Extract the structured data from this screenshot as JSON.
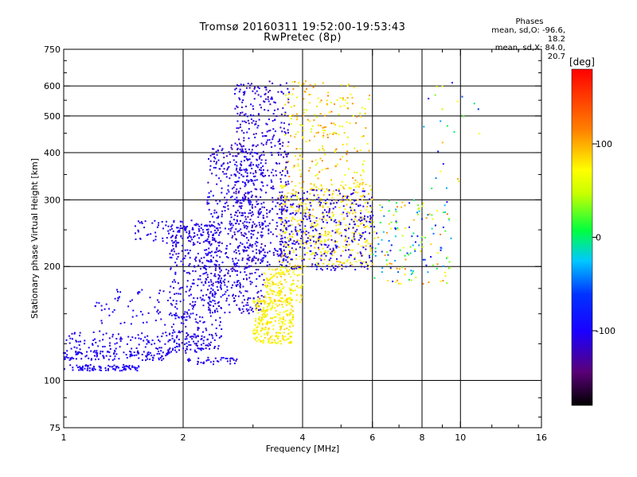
{
  "header": {
    "title_line1": "Tromsø 20160311 19:52:00-19:53:43",
    "title_line2": "RwPretec (8p)"
  },
  "phase_stats": {
    "title": "Phases",
    "line_o": "mean, sd,O:  -96.6, 18.2",
    "line_x": "mean, sd,X:  84.0, 20.7"
  },
  "colorbar": {
    "unit": "[deg]",
    "ticks": [
      {
        "value": 100,
        "label": "100"
      },
      {
        "value": 0,
        "label": "0"
      },
      {
        "value": -100,
        "label": "-100"
      }
    ],
    "range": [
      -180,
      180
    ]
  },
  "chart_data": {
    "type": "scatter",
    "xlabel": "Frequency [MHz]",
    "ylabel": "Stationary phase Virtual Height [km]",
    "x_scale": "log",
    "y_scale": "log",
    "xlim": [
      1,
      16
    ],
    "ylim": [
      75,
      750
    ],
    "x_ticks": [
      {
        "value": 1,
        "label": "1"
      },
      {
        "value": 2,
        "label": "2"
      },
      {
        "value": 4,
        "label": "4"
      },
      {
        "value": 6,
        "label": "6"
      },
      {
        "value": 8,
        "label": "8"
      },
      {
        "value": 10,
        "label": "10"
      },
      {
        "value": 16,
        "label": "16"
      }
    ],
    "x_minor_ticks": [
      3,
      5,
      7,
      9,
      12,
      14
    ],
    "x_grid": [
      2,
      4,
      6,
      8,
      10
    ],
    "y_ticks": [
      {
        "value": 75,
        "label": "75"
      },
      {
        "value": 100,
        "label": "100"
      },
      {
        "value": 200,
        "label": "200"
      },
      {
        "value": 300,
        "label": "300"
      },
      {
        "value": 400,
        "label": "400"
      },
      {
        "value": 500,
        "label": "500"
      },
      {
        "value": 600,
        "label": "600"
      },
      {
        "value": 750,
        "label": "750"
      }
    ],
    "y_minor_ticks": [
      80,
      90,
      125,
      150,
      175,
      250,
      350,
      450,
      550,
      650,
      700
    ],
    "y_grid": [
      100,
      200,
      300,
      400,
      500,
      600
    ],
    "clusters": [
      {
        "f": [
          1.0,
          1.55
        ],
        "h": [
          106,
          110
        ],
        "phase": [
          -110,
          -95
        ],
        "n": 90
      },
      {
        "f": [
          1.0,
          1.85
        ],
        "h": [
          113,
          120
        ],
        "phase": [
          -110,
          -95
        ],
        "n": 120
      },
      {
        "f": [
          1.0,
          2.3
        ],
        "h": [
          118,
          135
        ],
        "phase": [
          -115,
          -90
        ],
        "n": 140
      },
      {
        "f": [
          1.2,
          1.9
        ],
        "h": [
          140,
          175
        ],
        "phase": [
          -115,
          -90
        ],
        "n": 60
      },
      {
        "f": [
          1.85,
          2.5
        ],
        "h": [
          120,
          260
        ],
        "phase": [
          -120,
          -90
        ],
        "n": 420
      },
      {
        "f": [
          2.0,
          2.75
        ],
        "h": [
          110,
          115
        ],
        "phase": [
          -115,
          -95
        ],
        "n": 40
      },
      {
        "f": [
          2.3,
          3.2
        ],
        "h": [
          150,
          420
        ],
        "phase": [
          -125,
          -90
        ],
        "n": 520
      },
      {
        "f": [
          2.7,
          3.7
        ],
        "h": [
          200,
          620
        ],
        "phase": [
          -130,
          -90
        ],
        "n": 520
      },
      {
        "f": [
          1.5,
          2.3
        ],
        "h": [
          230,
          265
        ],
        "phase": [
          -115,
          -95
        ],
        "n": 70
      },
      {
        "f": [
          3.0,
          3.8
        ],
        "h": [
          125,
          165
        ],
        "phase": [
          60,
          90
        ],
        "n": 260
      },
      {
        "f": [
          3.2,
          4.0
        ],
        "h": [
          160,
          200
        ],
        "phase": [
          60,
          95
        ],
        "n": 160
      },
      {
        "f": [
          3.5,
          6.0
        ],
        "h": [
          200,
          330
        ],
        "phase": [
          60,
          100
        ],
        "n": 420
      },
      {
        "f": [
          3.5,
          6.0
        ],
        "h": [
          195,
          320
        ],
        "phase": [
          -120,
          -90
        ],
        "n": 360
      },
      {
        "f": [
          3.6,
          5.9
        ],
        "h": [
          330,
          620
        ],
        "phase": [
          50,
          120
        ],
        "n": 220
      },
      {
        "f": [
          6.0,
          9.5
        ],
        "h": [
          180,
          300
        ],
        "phase": [
          -100,
          120
        ],
        "n": 160
      },
      {
        "f": [
          8.0,
          11.5
        ],
        "h": [
          320,
          620
        ],
        "phase": [
          -110,
          110
        ],
        "n": 25
      }
    ]
  }
}
